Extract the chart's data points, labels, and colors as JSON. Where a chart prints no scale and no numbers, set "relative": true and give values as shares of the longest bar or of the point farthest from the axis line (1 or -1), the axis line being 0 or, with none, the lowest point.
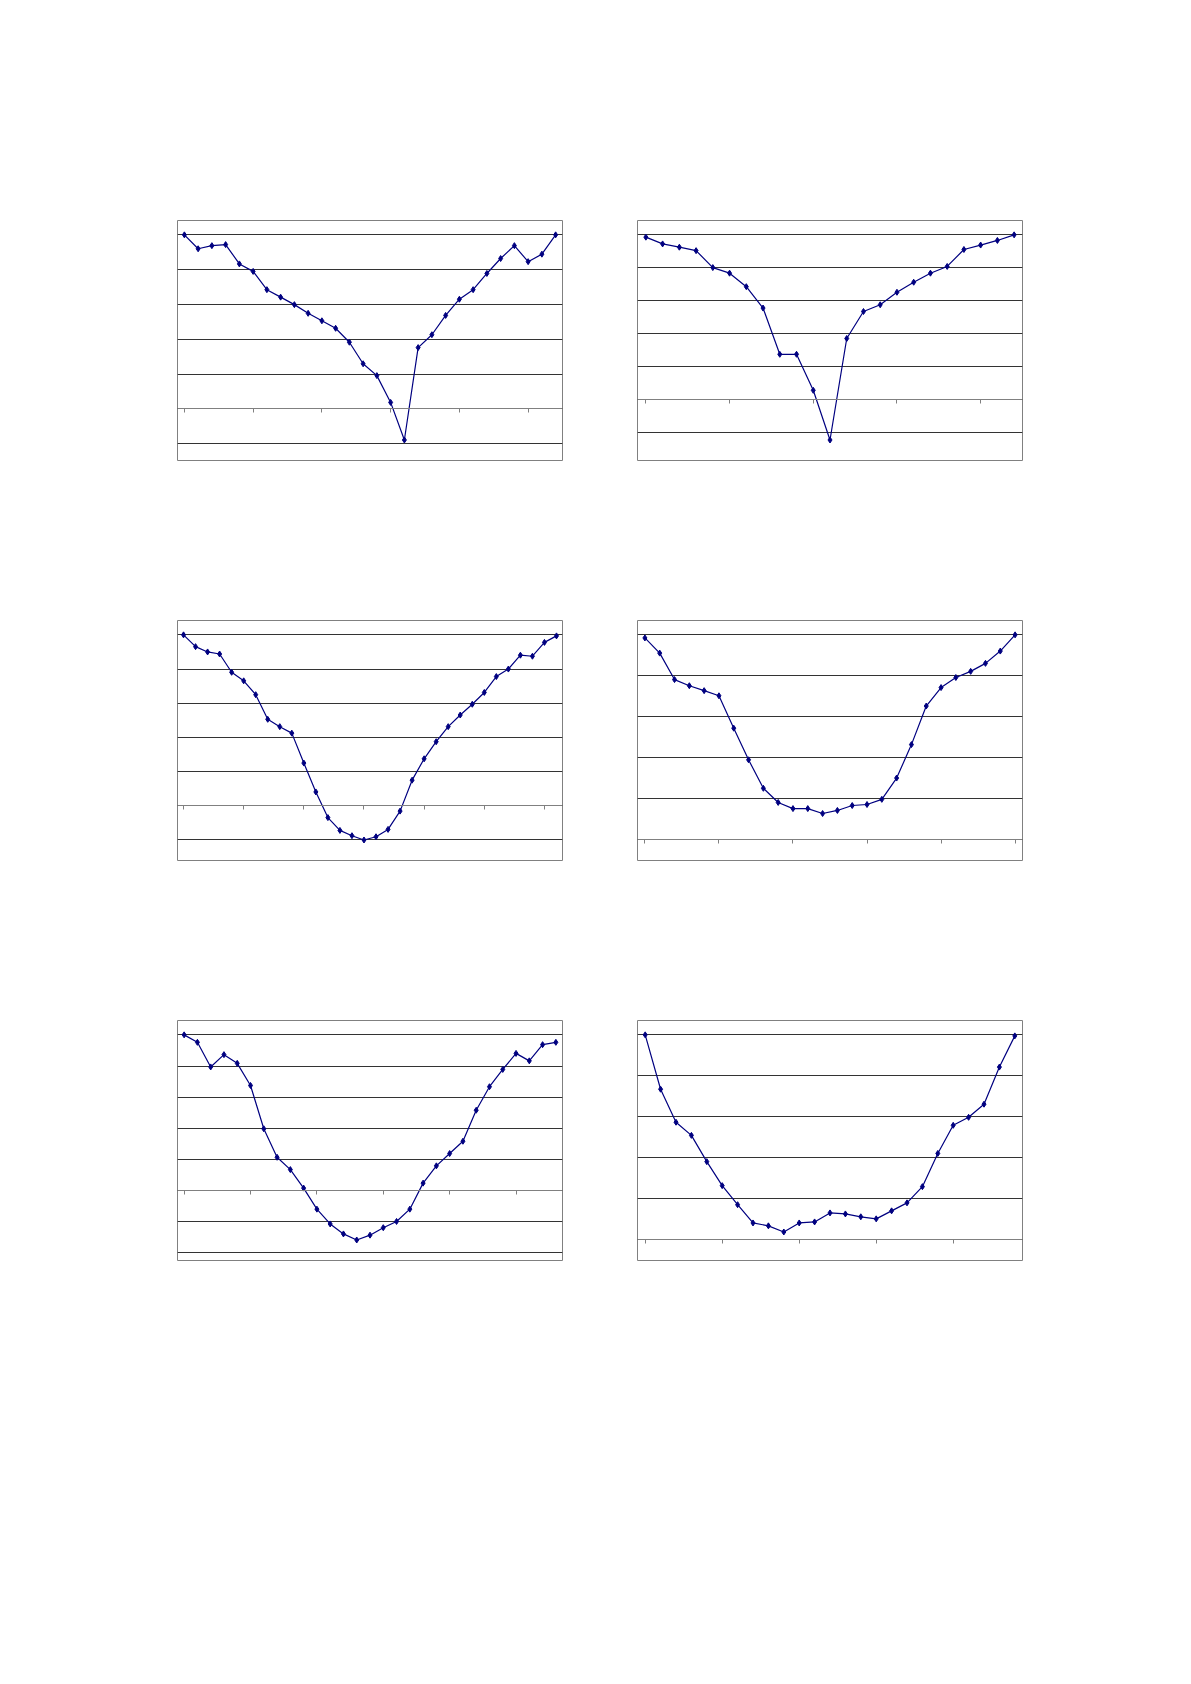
{
  "chart_data": [
    {
      "type": "line",
      "relative": true,
      "marker": "diamond",
      "grid": "y",
      "categories": [
        null,
        null,
        null,
        null,
        null,
        null,
        null,
        null,
        null,
        null,
        null,
        null,
        null,
        null,
        null,
        null,
        null,
        null,
        null,
        null,
        null,
        null,
        null,
        null,
        null,
        null,
        null,
        null
      ],
      "series": [
        {
          "color": "#000080",
          "values": [
            1.0,
            0.92,
            0.938,
            0.944,
            0.833,
            0.79,
            0.685,
            0.642,
            0.599,
            0.549,
            0.506,
            0.463,
            0.383,
            0.259,
            0.191,
            0.037,
            -0.179,
            0.352,
            0.426,
            0.537,
            0.63,
            0.685,
            0.778,
            0.864,
            0.938,
            0.846,
            0.889,
            1.0
          ]
        }
      ]
    },
    {
      "type": "line",
      "relative": true,
      "marker": "diamond",
      "grid": "y",
      "categories": [
        null,
        null,
        null,
        null,
        null,
        null,
        null,
        null,
        null,
        null,
        null,
        null,
        null,
        null,
        null,
        null,
        null,
        null,
        null,
        null,
        null,
        null,
        null
      ],
      "series": [
        {
          "color": "#000080",
          "values": [
            0.986,
            0.945,
            0.925,
            0.904,
            0.801,
            0.767,
            0.685,
            0.555,
            0.274,
            0.274,
            0.055,
            -0.247,
            0.37,
            0.534,
            0.575,
            0.651,
            0.712,
            0.767,
            0.808,
            0.911,
            0.938,
            0.966,
            1.0
          ]
        }
      ]
    },
    {
      "type": "line",
      "relative": true,
      "marker": "diamond",
      "grid": "y",
      "categories": [
        null,
        null,
        null,
        null,
        null,
        null,
        null,
        null,
        null,
        null,
        null,
        null,
        null,
        null,
        null,
        null,
        null,
        null,
        null,
        null,
        null,
        null,
        null,
        null,
        null,
        null,
        null,
        null,
        null,
        null,
        null,
        null
      ],
      "series": [
        {
          "color": "#000080",
          "values": [
            1.0,
            0.931,
            0.9,
            0.888,
            0.781,
            0.731,
            0.65,
            0.506,
            0.463,
            0.425,
            0.25,
            0.081,
            -0.069,
            -0.144,
            -0.175,
            -0.2,
            -0.181,
            -0.138,
            -0.031,
            0.15,
            0.275,
            0.375,
            0.463,
            0.531,
            0.594,
            0.663,
            0.756,
            0.8,
            0.881,
            0.875,
            0.956,
            0.994
          ]
        }
      ]
    },
    {
      "type": "line",
      "relative": true,
      "marker": "diamond",
      "grid": "y",
      "categories": [
        null,
        null,
        null,
        null,
        null,
        null,
        null,
        null,
        null,
        null,
        null,
        null,
        null,
        null,
        null,
        null,
        null,
        null,
        null,
        null,
        null,
        null,
        null,
        null,
        null,
        null
      ],
      "series": [
        {
          "color": "#000080",
          "values": [
            0.985,
            0.911,
            0.782,
            0.752,
            0.728,
            0.703,
            0.545,
            0.391,
            0.252,
            0.183,
            0.153,
            0.153,
            0.129,
            0.144,
            0.168,
            0.173,
            0.198,
            0.302,
            0.465,
            0.653,
            0.743,
            0.792,
            0.822,
            0.861,
            0.921,
            1.0
          ]
        }
      ]
    },
    {
      "type": "line",
      "relative": true,
      "marker": "diamond",
      "grid": "y",
      "categories": [
        null,
        null,
        null,
        null,
        null,
        null,
        null,
        null,
        null,
        null,
        null,
        null,
        null,
        null,
        null,
        null,
        null,
        null,
        null,
        null,
        null,
        null,
        null,
        null,
        null,
        null,
        null,
        null,
        null
      ],
      "series": [
        {
          "color": "#000080",
          "values": [
            1.0,
            0.952,
            0.794,
            0.873,
            0.817,
            0.675,
            0.397,
            0.214,
            0.135,
            0.016,
            -0.119,
            -0.214,
            -0.278,
            -0.317,
            -0.286,
            -0.238,
            -0.198,
            -0.119,
            0.048,
            0.159,
            0.238,
            0.317,
            0.516,
            0.667,
            0.778,
            0.881,
            0.833,
            0.937,
            0.952
          ]
        }
      ]
    },
    {
      "type": "line",
      "relative": true,
      "marker": "diamond",
      "grid": "y",
      "categories": [
        null,
        null,
        null,
        null,
        null,
        null,
        null,
        null,
        null,
        null,
        null,
        null,
        null,
        null,
        null,
        null,
        null,
        null,
        null,
        null,
        null,
        null,
        null,
        null,
        null
      ],
      "series": [
        {
          "color": "#000080",
          "values": [
            1.0,
            0.735,
            0.574,
            0.51,
            0.382,
            0.265,
            0.172,
            0.083,
            0.069,
            0.039,
            0.083,
            0.088,
            0.132,
            0.127,
            0.113,
            0.103,
            0.142,
            0.181,
            0.26,
            0.422,
            0.559,
            0.598,
            0.662,
            0.843,
            0.995
          ]
        }
      ]
    }
  ]
}
